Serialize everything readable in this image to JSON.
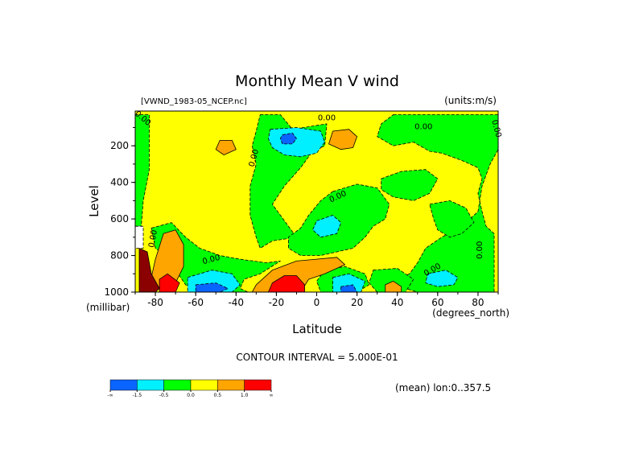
{
  "chart_data": {
    "type": "heatmap",
    "title": "Monthly Mean V wind",
    "file_label": "[VWND_1983-05_NCEP.nc]",
    "units_label": "(units:m/s)",
    "xlabel": "Latitude",
    "xunit_label": "(degrees_north)",
    "ylabel": "Level",
    "yunit_label": "(millibar)",
    "contour_interval": "CONTOUR INTERVAL = 5.000E-01",
    "mean_label": "(mean) lon:0..357.5",
    "xlim": [
      -90,
      90
    ],
    "ylim": [
      1000,
      10
    ],
    "x_ticks": [
      {
        "value": -80,
        "label": "-80"
      },
      {
        "value": -60,
        "label": "-60"
      },
      {
        "value": -40,
        "label": "-40"
      },
      {
        "value": -20,
        "label": "-20"
      },
      {
        "value": 0,
        "label": "0"
      },
      {
        "value": 20,
        "label": "20"
      },
      {
        "value": 40,
        "label": "40"
      },
      {
        "value": 60,
        "label": "60"
      },
      {
        "value": 80,
        "label": "80"
      }
    ],
    "y_ticks": [
      {
        "value": 200,
        "label": "200"
      },
      {
        "value": 400,
        "label": "400"
      },
      {
        "value": 600,
        "label": "600"
      },
      {
        "value": 800,
        "label": "800"
      },
      {
        "value": 1000,
        "label": "1000"
      }
    ],
    "contour_labels": [
      {
        "text": "0.00",
        "lat": -87,
        "level": 60,
        "rotate": 40
      },
      {
        "text": "0.00",
        "lat": 5,
        "level": 60,
        "rotate": 0
      },
      {
        "text": "0.00",
        "lat": 53,
        "level": 110,
        "rotate": 0
      },
      {
        "text": "0.00",
        "lat": 88,
        "level": 110,
        "rotate": 75
      },
      {
        "text": "0.00",
        "lat": -30,
        "level": 270,
        "rotate": -75
      },
      {
        "text": "0.00",
        "lat": 11,
        "level": 490,
        "rotate": -25
      },
      {
        "text": "0.00",
        "lat": -80,
        "level": 710,
        "rotate": -80
      },
      {
        "text": "0.00",
        "lat": -52,
        "level": 835,
        "rotate": -15
      },
      {
        "text": "0.00",
        "lat": 58,
        "level": 890,
        "rotate": -30
      },
      {
        "text": "0.00",
        "lat": 82,
        "level": 770,
        "rotate": -90
      }
    ],
    "bands": [
      {
        "color": "#0a64ff",
        "label": "-∞"
      },
      {
        "color": "#00f0ff",
        "label": "-1.5"
      },
      {
        "color": "#00ff00",
        "label": "-0.5"
      },
      {
        "color": "#ffff00",
        "label": "0.0"
      },
      {
        "color": "#ffa500",
        "label": "0.5"
      },
      {
        "color": "#ff0000",
        "label": "1.0"
      },
      {
        "color": "#ff0000",
        "label": "∞"
      }
    ],
    "colors": {
      "strong_negative": "#0a64ff",
      "negative": "#00f0ff",
      "weak_negative": "#00ff00",
      "weak_positive": "#ffff00",
      "positive": "#ffa500",
      "strong_positive": "#ff0000",
      "very_strong_positive": "#8b0000",
      "missing": "#ffffff"
    },
    "regions": [
      {
        "class": "weak_negative",
        "desc": "left_edge",
        "poly": [
          [
            -90,
            30
          ],
          [
            -83,
            30
          ],
          [
            -83,
            330
          ],
          [
            -86,
            500
          ],
          [
            -87,
            640
          ],
          [
            -90,
            640
          ]
        ]
      },
      {
        "class": "weak_negative",
        "desc": "south_jet",
        "poly": [
          [
            -82,
            650
          ],
          [
            -72,
            620
          ],
          [
            -65,
            700
          ],
          [
            -58,
            760
          ],
          [
            -48,
            800
          ],
          [
            -38,
            820
          ],
          [
            -25,
            840
          ],
          [
            -18,
            830
          ],
          [
            -28,
            900
          ],
          [
            -36,
            930
          ],
          [
            -38,
            980
          ],
          [
            -34,
            1000
          ],
          [
            -60,
            1000
          ],
          [
            -65,
            960
          ],
          [
            -70,
            880
          ],
          [
            -75,
            800
          ],
          [
            -80,
            760
          ]
        ]
      },
      {
        "class": "weak_negative",
        "desc": "tropical_column",
        "poly": [
          [
            -28,
            30
          ],
          [
            -18,
            30
          ],
          [
            -12,
            110
          ],
          [
            5,
            80
          ],
          [
            4,
            200
          ],
          [
            -2,
            230
          ],
          [
            -8,
            320
          ],
          [
            -16,
            420
          ],
          [
            -22,
            520
          ],
          [
            -18,
            580
          ],
          [
            -14,
            640
          ],
          [
            -10,
            700
          ],
          [
            -22,
            720
          ],
          [
            -28,
            760
          ],
          [
            -30,
            700
          ],
          [
            -33,
            580
          ],
          [
            -33,
            420
          ],
          [
            -30,
            300
          ],
          [
            -32,
            200
          ],
          [
            -30,
            120
          ]
        ]
      },
      {
        "class": "weak_negative",
        "desc": "north_mid",
        "poly": [
          [
            8,
            450
          ],
          [
            20,
            410
          ],
          [
            30,
            430
          ],
          [
            36,
            520
          ],
          [
            34,
            600
          ],
          [
            28,
            640
          ],
          [
            24,
            700
          ],
          [
            18,
            760
          ],
          [
            10,
            780
          ],
          [
            2,
            800
          ],
          [
            -8,
            800
          ],
          [
            -14,
            760
          ],
          [
            -14,
            700
          ],
          [
            -8,
            650
          ],
          [
            -4,
            580
          ],
          [
            2,
            500
          ]
        ]
      },
      {
        "class": "weak_negative",
        "desc": "north_upper",
        "poly": [
          [
            38,
            30
          ],
          [
            55,
            30
          ],
          [
            75,
            30
          ],
          [
            90,
            30
          ],
          [
            90,
            220
          ],
          [
            86,
            300
          ],
          [
            82,
            420
          ],
          [
            80,
            560
          ],
          [
            72,
            640
          ],
          [
            62,
            700
          ],
          [
            54,
            760
          ],
          [
            50,
            840
          ],
          [
            46,
            900
          ],
          [
            40,
            930
          ],
          [
            44,
            980
          ],
          [
            50,
            1000
          ],
          [
            88,
            1000
          ],
          [
            88,
            680
          ],
          [
            84,
            640
          ],
          [
            82,
            560
          ],
          [
            80,
            460
          ],
          [
            82,
            380
          ],
          [
            80,
            320
          ],
          [
            72,
            280
          ],
          [
            62,
            240
          ],
          [
            56,
            230
          ],
          [
            48,
            180
          ],
          [
            38,
            200
          ],
          [
            30,
            150
          ],
          [
            32,
            80
          ]
        ]
      },
      {
        "class": "weak_negative",
        "desc": "north_high",
        "poly": [
          [
            32,
            380
          ],
          [
            42,
            340
          ],
          [
            54,
            330
          ],
          [
            60,
            380
          ],
          [
            56,
            460
          ],
          [
            48,
            500
          ],
          [
            38,
            480
          ],
          [
            32,
            440
          ]
        ]
      },
      {
        "class": "weak_negative",
        "desc": "deep_right",
        "poly": [
          [
            56,
            520
          ],
          [
            66,
            500
          ],
          [
            74,
            540
          ],
          [
            78,
            620
          ],
          [
            72,
            680
          ],
          [
            66,
            700
          ],
          [
            60,
            660
          ],
          [
            58,
            600
          ]
        ]
      },
      {
        "class": "weak_negative",
        "desc": "lower_right",
        "poly": [
          [
            28,
            880
          ],
          [
            40,
            870
          ],
          [
            48,
            930
          ],
          [
            44,
            1000
          ],
          [
            30,
            1000
          ],
          [
            26,
            950
          ]
        ]
      },
      {
        "class": "weak_negative",
        "desc": "tropical_low",
        "poly": [
          [
            4,
            880
          ],
          [
            14,
            860
          ],
          [
            24,
            900
          ],
          [
            26,
            960
          ],
          [
            20,
            1000
          ],
          [
            2,
            1000
          ],
          [
            0,
            940
          ]
        ]
      },
      {
        "class": "negative",
        "desc": "upper_trop_jet",
        "poly": [
          [
            -23,
            110
          ],
          [
            -10,
            100
          ],
          [
            2,
            120
          ],
          [
            4,
            180
          ],
          [
            0,
            240
          ],
          [
            -8,
            260
          ],
          [
            -16,
            250
          ],
          [
            -22,
            210
          ],
          [
            -24,
            160
          ]
        ]
      },
      {
        "class": "strong_negative",
        "desc": "upper_trop_core",
        "poly": [
          [
            -17,
            140
          ],
          [
            -12,
            130
          ],
          [
            -10,
            160
          ],
          [
            -12,
            190
          ],
          [
            -17,
            190
          ],
          [
            -18,
            160
          ]
        ]
      },
      {
        "class": "negative",
        "desc": "north_blob",
        "poly": [
          [
            0,
            610
          ],
          [
            8,
            580
          ],
          [
            12,
            620
          ],
          [
            10,
            680
          ],
          [
            2,
            700
          ],
          [
            -2,
            660
          ]
        ]
      },
      {
        "class": "negative",
        "desc": "south_sfc",
        "poly": [
          [
            -64,
            920
          ],
          [
            -52,
            880
          ],
          [
            -42,
            900
          ],
          [
            -38,
            960
          ],
          [
            -42,
            1000
          ],
          [
            -64,
            1000
          ]
        ]
      },
      {
        "class": "strong_negative",
        "desc": "south_sfc_core",
        "poly": [
          [
            -60,
            960
          ],
          [
            -50,
            950
          ],
          [
            -44,
            980
          ],
          [
            -48,
            1000
          ],
          [
            -60,
            1000
          ]
        ]
      },
      {
        "class": "negative",
        "desc": "tropical_sfc",
        "poly": [
          [
            8,
            920
          ],
          [
            16,
            900
          ],
          [
            24,
            940
          ],
          [
            22,
            1000
          ],
          [
            8,
            1000
          ]
        ]
      },
      {
        "class": "strong_negative",
        "desc": "tropical_sfc_core",
        "poly": [
          [
            12,
            970
          ],
          [
            18,
            960
          ],
          [
            20,
            1000
          ],
          [
            12,
            1000
          ]
        ]
      },
      {
        "class": "negative",
        "desc": "north_sfc",
        "poly": [
          [
            55,
            900
          ],
          [
            64,
            880
          ],
          [
            70,
            920
          ],
          [
            68,
            960
          ],
          [
            60,
            970
          ],
          [
            54,
            950
          ]
        ]
      },
      {
        "class": "positive",
        "desc": "upper_left_blob",
        "poly": [
          [
            -48,
            170
          ],
          [
            -42,
            170
          ],
          [
            -40,
            220
          ],
          [
            -46,
            250
          ],
          [
            -50,
            220
          ]
        ]
      },
      {
        "class": "positive",
        "desc": "upper_right_blob",
        "poly": [
          [
            8,
            120
          ],
          [
            16,
            110
          ],
          [
            20,
            150
          ],
          [
            18,
            210
          ],
          [
            12,
            220
          ],
          [
            6,
            190
          ]
        ]
      },
      {
        "class": "positive",
        "desc": "south_high",
        "poly": [
          [
            -80,
            820
          ],
          [
            -76,
            680
          ],
          [
            -70,
            660
          ],
          [
            -66,
            740
          ],
          [
            -66,
            860
          ],
          [
            -70,
            950
          ],
          [
            -78,
            980
          ],
          [
            -82,
            920
          ]
        ]
      },
      {
        "class": "positive",
        "desc": "tropical_sfc_pos",
        "poly": [
          [
            -30,
            960
          ],
          [
            -22,
            880
          ],
          [
            -10,
            830
          ],
          [
            10,
            810
          ],
          [
            14,
            850
          ],
          [
            4,
            900
          ],
          [
            -4,
            930
          ],
          [
            -8,
            1000
          ],
          [
            -32,
            1000
          ]
        ]
      },
      {
        "class": "positive",
        "desc": "north_sfc_pos",
        "poly": [
          [
            34,
            960
          ],
          [
            38,
            940
          ],
          [
            42,
            970
          ],
          [
            42,
            1000
          ],
          [
            34,
            1000
          ]
        ]
      },
      {
        "class": "strong_positive",
        "desc": "tropical_sfc_core_pos",
        "poly": [
          [
            -24,
            1000
          ],
          [
            -22,
            950
          ],
          [
            -16,
            910
          ],
          [
            -10,
            910
          ],
          [
            -6,
            960
          ],
          [
            -6,
            1000
          ]
        ]
      },
      {
        "class": "very_strong_positive",
        "desc": "southern_sfc_core",
        "poly": [
          [
            -88,
            760
          ],
          [
            -84,
            780
          ],
          [
            -82,
            900
          ],
          [
            -78,
            980
          ],
          [
            -80,
            1000
          ],
          [
            -88,
            1000
          ]
        ]
      },
      {
        "class": "strong_positive",
        "desc": "southern_mid_core",
        "poly": [
          [
            -78,
            930
          ],
          [
            -74,
            900
          ],
          [
            -68,
            950
          ],
          [
            -70,
            1000
          ],
          [
            -78,
            1000
          ]
        ]
      },
      {
        "class": "missing",
        "desc": "missing_top_left",
        "poly": [
          [
            -90,
            640
          ],
          [
            -86,
            640
          ],
          [
            -86,
            760
          ],
          [
            -90,
            760
          ]
        ]
      }
    ]
  }
}
